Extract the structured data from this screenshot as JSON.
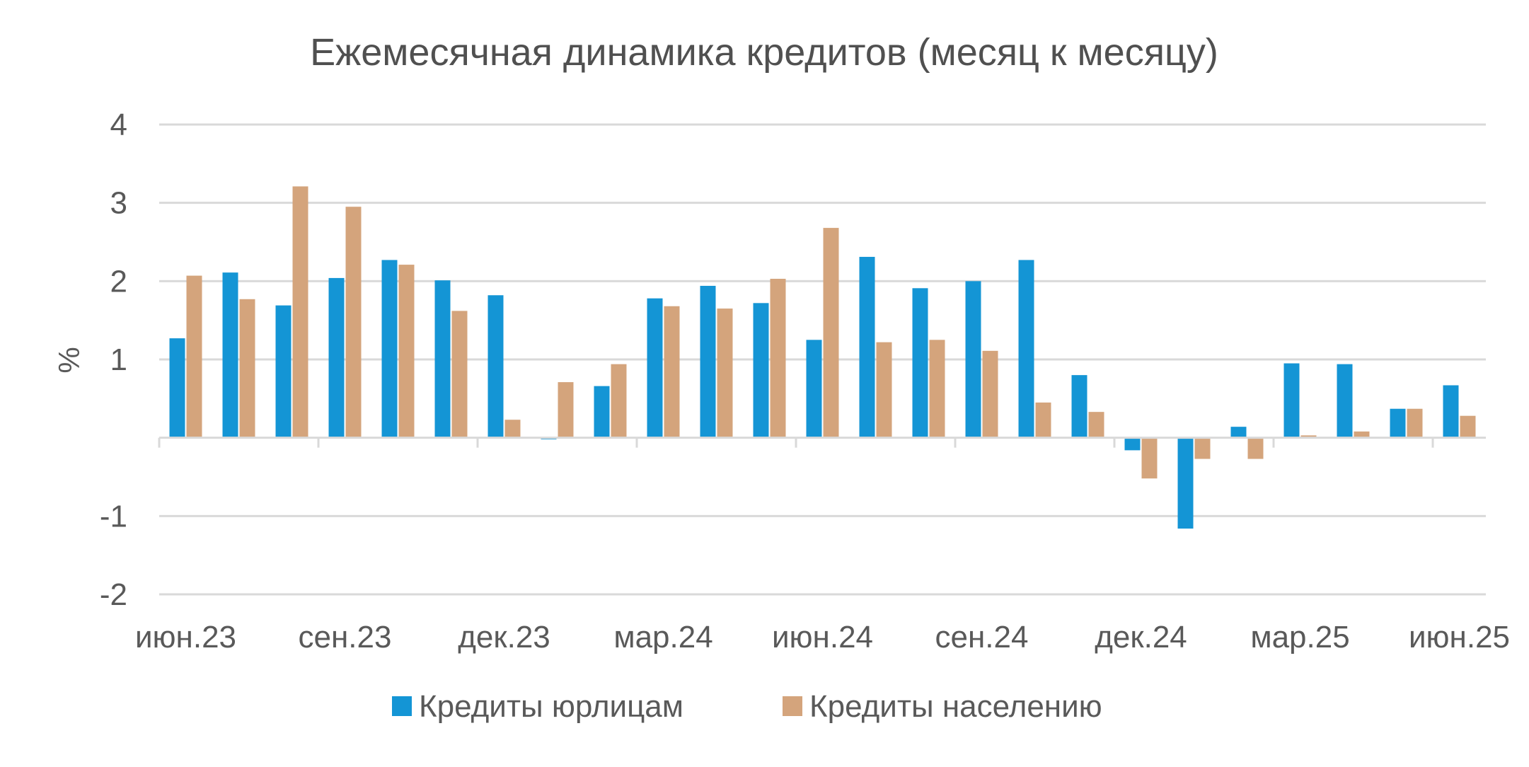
{
  "chart_data": {
    "type": "bar",
    "title": "Ежемесячная динамика кредитов (месяц к месяцу)",
    "xlabel": "",
    "ylabel": "%",
    "ylim": [
      -2,
      4
    ],
    "yticks": [
      -2,
      -1,
      1,
      2,
      3,
      4
    ],
    "grid": true,
    "legend_position": "bottom",
    "x_tick_labels": [
      "июн.23",
      "сен.23",
      "дек.23",
      "мар.24",
      "июн.24",
      "сен.24",
      "дек.24",
      "мар.25",
      "июн.25"
    ],
    "categories": [
      "июн.23",
      "июл.23",
      "авг.23",
      "сен.23",
      "окт.23",
      "ноя.23",
      "дек.23",
      "янв.24",
      "фев.24",
      "мар.24",
      "апр.24",
      "май.24",
      "июн.24",
      "июл.24",
      "авг.24",
      "сен.24",
      "окт.24",
      "ноя.24",
      "дек.24",
      "янв.25",
      "фев.25",
      "мар.25",
      "апр.25",
      "май.25",
      "июн.25"
    ],
    "series": [
      {
        "name": "Кредиты юрлицам",
        "color": "#1495d5",
        "values": [
          1.27,
          2.11,
          1.69,
          2.04,
          2.27,
          2.01,
          1.82,
          -0.02,
          0.66,
          1.78,
          1.94,
          1.72,
          1.25,
          2.31,
          1.91,
          2.0,
          2.27,
          0.8,
          -0.16,
          -1.16,
          0.14,
          0.95,
          0.94,
          0.37,
          0.67
        ]
      },
      {
        "name": "Кредиты населению",
        "color": "#d4a47c",
        "values": [
          2.07,
          1.77,
          3.21,
          2.95,
          2.21,
          1.62,
          0.23,
          0.71,
          0.94,
          1.68,
          1.65,
          2.03,
          2.68,
          1.22,
          1.25,
          1.11,
          0.45,
          0.33,
          -0.52,
          -0.27,
          -0.27,
          0.03,
          0.08,
          0.37,
          0.28
        ]
      }
    ]
  }
}
